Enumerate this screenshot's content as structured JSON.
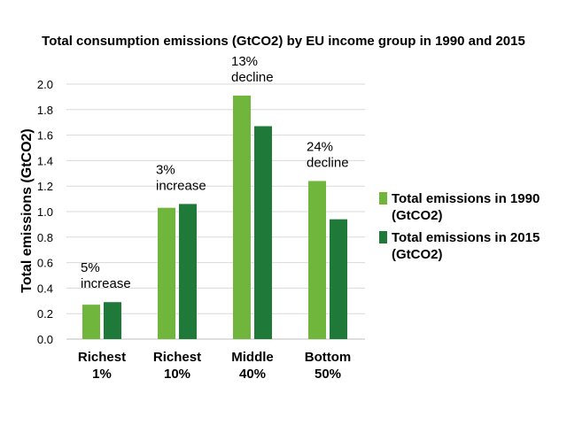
{
  "chart_data": {
    "type": "bar",
    "title": "Total consumption emissions (GtCO2) by EU income group in 1990 and 2015",
    "xlabel": "",
    "ylabel": "Total emissions (GtCO2)",
    "ylim": [
      0,
      2.0
    ],
    "yticks": [
      "0.0",
      "0.2",
      "0.4",
      "0.6",
      "0.8",
      "1.0",
      "1.2",
      "1.4",
      "1.6",
      "1.8",
      "2.0"
    ],
    "grid": true,
    "legend_position": "right",
    "categories": [
      [
        "Richest",
        "1%"
      ],
      [
        "Richest",
        "10%"
      ],
      [
        "Middle",
        "40%"
      ],
      [
        "Bottom",
        "50%"
      ]
    ],
    "series": [
      {
        "name": [
          "Total emissions in 1990",
          "(GtCO2)"
        ],
        "color": "#70b63c",
        "values": [
          0.27,
          1.03,
          1.91,
          1.24
        ]
      },
      {
        "name": [
          "Total emissions in 2015",
          "(GtCO2)"
        ],
        "color": "#1f7a3a",
        "values": [
          0.29,
          1.06,
          1.67,
          0.94
        ]
      }
    ],
    "annotations": [
      [
        "5%",
        "increase"
      ],
      [
        "3%",
        "increase"
      ],
      [
        "13%",
        "decline"
      ],
      [
        "24%",
        "decline"
      ]
    ]
  }
}
